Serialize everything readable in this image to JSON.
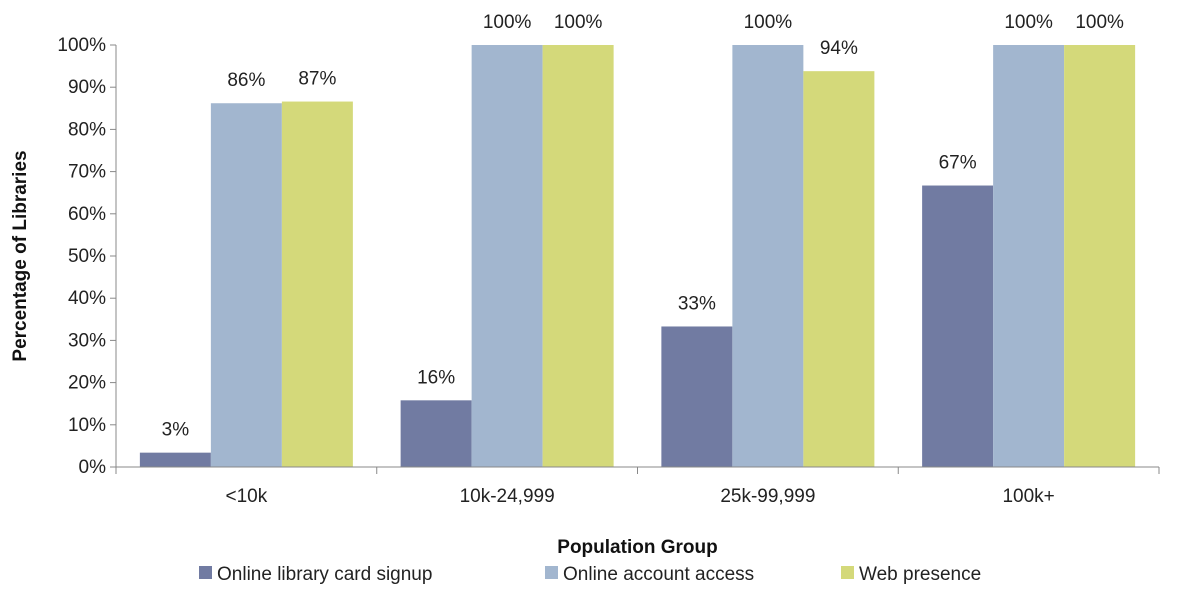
{
  "chart_data": {
    "type": "bar",
    "title": "",
    "xlabel": "Population Group",
    "ylabel": "Percentage of Libraries",
    "categories": [
      "<10k",
      "10k-24,999",
      "25k-99,999",
      "100k+"
    ],
    "ylim": [
      0,
      100
    ],
    "yticks": [
      0,
      10,
      20,
      30,
      40,
      50,
      60,
      70,
      80,
      90,
      100
    ],
    "ytick_labels": [
      "0%",
      "10%",
      "20%",
      "30%",
      "40%",
      "50%",
      "60%",
      "70%",
      "80%",
      "90%",
      "100%"
    ],
    "grid": false,
    "legend_position": "bottom",
    "series": [
      {
        "name": "Online library card signup",
        "color": "#717ba2",
        "values": [
          3.4,
          15.8,
          33.3,
          66.7
        ],
        "labels": [
          "3%",
          "16%",
          "33%",
          "67%"
        ]
      },
      {
        "name": "Online account access",
        "color": "#a2b6cf",
        "values": [
          86.2,
          100,
          100,
          100
        ],
        "labels": [
          "86%",
          "100%",
          "100%",
          "100%"
        ]
      },
      {
        "name": "Web presence",
        "color": "#d4d97a",
        "values": [
          86.6,
          100,
          93.8,
          100
        ],
        "labels": [
          "87%",
          "100%",
          "94%",
          "100%"
        ]
      }
    ]
  }
}
